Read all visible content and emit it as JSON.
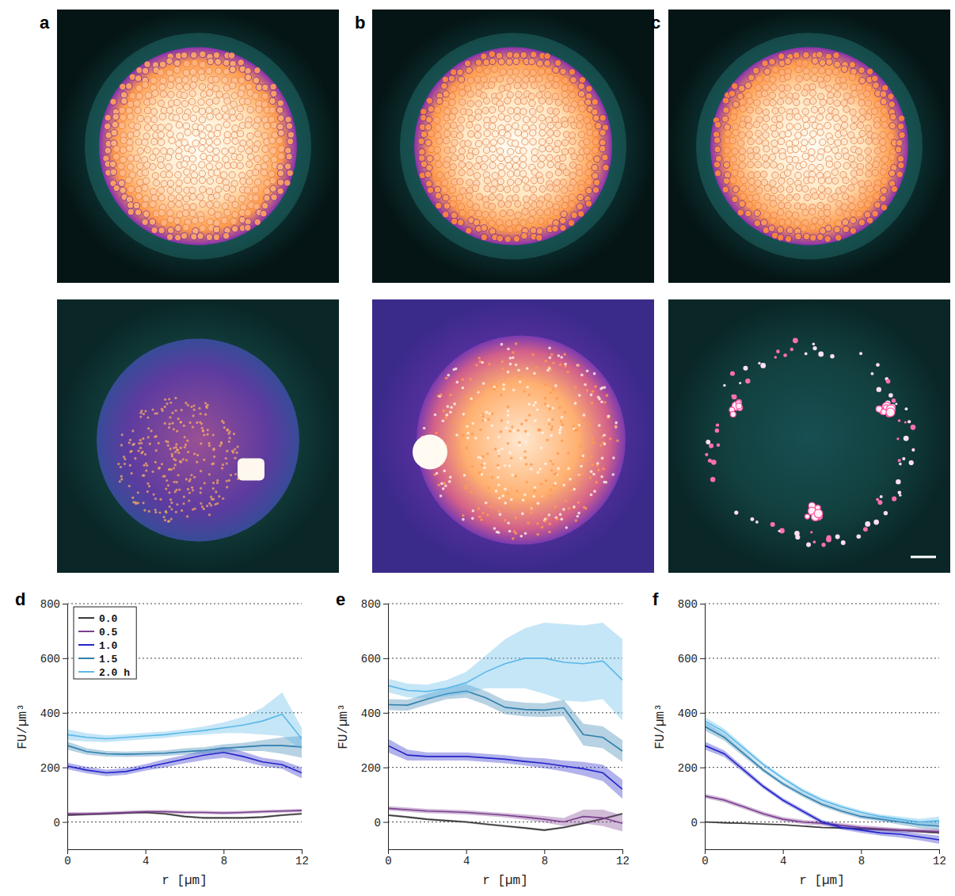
{
  "images": [
    {
      "panel": "a"
    },
    {
      "panel": "b"
    },
    {
      "panel": "c"
    }
  ],
  "chart_data": [
    {
      "type": "line",
      "panel": "d",
      "x_label": "r [µm]",
      "y_label": "FU/µm³",
      "xlim": [
        0,
        12
      ],
      "ylim": [
        -100,
        800
      ],
      "xticks": [
        0,
        4,
        8,
        12
      ],
      "yticks": [
        0,
        200,
        400,
        600,
        800
      ],
      "grid": true,
      "legend": "upper left",
      "x": [
        0,
        1,
        2,
        3,
        4,
        5,
        6,
        7,
        8,
        9,
        10,
        11,
        12
      ],
      "series": [
        {
          "name": "0.0",
          "color": "#3a3a3a",
          "values": [
            25,
            28,
            30,
            33,
            35,
            30,
            20,
            15,
            15,
            15,
            18,
            25,
            30
          ],
          "error": [
            4,
            4,
            4,
            4,
            4,
            4,
            4,
            4,
            4,
            4,
            4,
            4,
            4
          ]
        },
        {
          "name": "0.5",
          "color": "#7b3f8f",
          "values": [
            30,
            30,
            32,
            35,
            38,
            38,
            35,
            35,
            33,
            35,
            38,
            40,
            42
          ],
          "error": [
            6,
            6,
            6,
            6,
            6,
            6,
            6,
            6,
            6,
            6,
            6,
            6,
            6
          ]
        },
        {
          "name": "1.0",
          "color": "#2323c8",
          "values": [
            205,
            190,
            180,
            185,
            200,
            215,
            230,
            245,
            255,
            240,
            220,
            210,
            180
          ],
          "error": [
            12,
            12,
            12,
            12,
            12,
            15,
            15,
            18,
            20,
            18,
            15,
            15,
            20
          ]
        },
        {
          "name": "1.5",
          "color": "#2f7fae",
          "values": [
            280,
            258,
            250,
            248,
            250,
            252,
            258,
            262,
            270,
            275,
            280,
            280,
            275
          ],
          "error": [
            15,
            12,
            10,
            10,
            10,
            10,
            12,
            12,
            15,
            15,
            20,
            30,
            40
          ]
        },
        {
          "name": "2.0 h",
          "color": "#5ab8e8",
          "values": [
            320,
            310,
            305,
            310,
            315,
            320,
            328,
            335,
            345,
            355,
            370,
            395,
            305
          ],
          "error": [
            20,
            15,
            12,
            12,
            12,
            12,
            12,
            15,
            20,
            30,
            50,
            80,
            40
          ]
        }
      ]
    },
    {
      "type": "line",
      "panel": "e",
      "x_label": "r [µm]",
      "y_label": "FU/µm³",
      "xlim": [
        0,
        12
      ],
      "ylim": [
        -100,
        800
      ],
      "xticks": [
        0,
        4,
        8,
        12
      ],
      "yticks": [
        0,
        200,
        400,
        600,
        800
      ],
      "grid": true,
      "x": [
        0,
        1,
        2,
        3,
        4,
        5,
        6,
        7,
        8,
        9,
        10,
        11,
        12
      ],
      "series": [
        {
          "color": "#3a3a3a",
          "values": [
            25,
            18,
            10,
            5,
            0,
            -8,
            -15,
            -22,
            -30,
            -20,
            -5,
            12,
            30
          ],
          "error": [
            4,
            4,
            4,
            4,
            4,
            4,
            4,
            4,
            4,
            4,
            4,
            4,
            4
          ]
        },
        {
          "color": "#7b3f8f",
          "values": [
            50,
            45,
            40,
            38,
            35,
            30,
            25,
            18,
            10,
            0,
            20,
            15,
            -5
          ],
          "error": [
            8,
            8,
            8,
            8,
            8,
            8,
            8,
            10,
            12,
            15,
            25,
            30,
            30
          ]
        },
        {
          "color": "#2323c8",
          "values": [
            280,
            245,
            240,
            240,
            240,
            235,
            230,
            222,
            215,
            205,
            195,
            180,
            120
          ],
          "error": [
            25,
            20,
            15,
            15,
            15,
            15,
            15,
            15,
            18,
            20,
            25,
            30,
            35
          ]
        },
        {
          "color": "#2f7fae",
          "values": [
            430,
            428,
            450,
            470,
            480,
            455,
            420,
            412,
            410,
            418,
            320,
            310,
            260
          ],
          "error": [
            20,
            20,
            20,
            20,
            25,
            25,
            25,
            25,
            25,
            30,
            40,
            40,
            40
          ]
        },
        {
          "color": "#5ab8e8",
          "values": [
            500,
            482,
            478,
            490,
            510,
            550,
            580,
            600,
            600,
            585,
            580,
            590,
            520
          ],
          "error": [
            25,
            25,
            25,
            30,
            40,
            60,
            90,
            110,
            130,
            140,
            140,
            140,
            150
          ]
        }
      ]
    },
    {
      "type": "line",
      "panel": "f",
      "x_label": "r [µm]",
      "y_label": "FU/µm³",
      "xlim": [
        0,
        12
      ],
      "ylim": [
        -100,
        800
      ],
      "xticks": [
        0,
        4,
        8,
        12
      ],
      "yticks": [
        0,
        200,
        400,
        600,
        800
      ],
      "grid": true,
      "x": [
        0,
        1,
        2,
        3,
        4,
        5,
        6,
        7,
        8,
        9,
        10,
        11,
        12
      ],
      "series": [
        {
          "color": "#3a3a3a",
          "values": [
            0,
            -3,
            -5,
            -8,
            -10,
            -15,
            -20,
            -22,
            -25,
            -28,
            -30,
            -35,
            -40
          ],
          "error": [
            3,
            3,
            3,
            3,
            3,
            3,
            3,
            3,
            3,
            3,
            3,
            3,
            3
          ]
        },
        {
          "color": "#7b3f8f",
          "values": [
            95,
            80,
            55,
            30,
            10,
            0,
            -5,
            -12,
            -20,
            -25,
            -30,
            -32,
            -35
          ],
          "error": [
            8,
            8,
            8,
            8,
            8,
            8,
            8,
            8,
            8,
            8,
            8,
            8,
            8
          ]
        },
        {
          "color": "#2323c8",
          "values": [
            280,
            250,
            190,
            130,
            80,
            40,
            0,
            -20,
            -30,
            -40,
            -45,
            -55,
            -65
          ],
          "error": [
            15,
            12,
            10,
            8,
            8,
            8,
            8,
            8,
            10,
            10,
            12,
            12,
            15
          ]
        },
        {
          "color": "#2f7fae",
          "values": [
            350,
            310,
            250,
            190,
            140,
            100,
            65,
            40,
            20,
            10,
            0,
            -10,
            -15
          ],
          "error": [
            15,
            12,
            10,
            8,
            8,
            8,
            8,
            8,
            8,
            8,
            10,
            12,
            15
          ]
        },
        {
          "color": "#5ab8e8",
          "values": [
            370,
            330,
            270,
            210,
            160,
            115,
            80,
            55,
            35,
            20,
            10,
            0,
            5
          ],
          "error": [
            15,
            12,
            10,
            8,
            8,
            8,
            8,
            8,
            8,
            8,
            10,
            12,
            15
          ]
        }
      ]
    }
  ]
}
